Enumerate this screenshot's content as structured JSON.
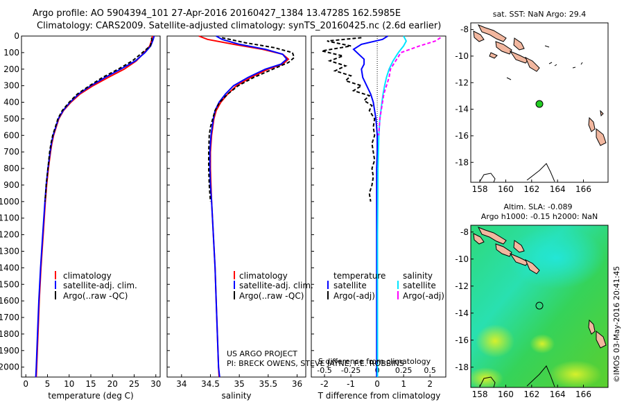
{
  "header": {
    "line1": "Argo profile: AO 5904394_101 27-Apr-2016 20160427_1384 13.4728S 162.5985E",
    "line2": "Climatology: CARS2009. Satellite-adjusted climatology: synTS_20160425.nc (2.6d earlier)"
  },
  "credits": {
    "project": "US ARGO PROJECT",
    "pi": "PI: BRECK OWENS, STEVE JAYNE, P.E. ROBBINS"
  },
  "side_stamp": "©IMOS 03-May-2016 20:41:45",
  "colors": {
    "climatology": "#ff0000",
    "satellite": "#0000ff",
    "argo": "#000000",
    "satellite_salinity": "#00e5ff",
    "argo_salinity": "#ff00ff",
    "land": "#f2b79f",
    "float_marker": "#22cc22"
  },
  "chart_data": [
    {
      "id": "temperature",
      "type": "line",
      "xlabel": "temperature (deg C)",
      "xlim": [
        -1,
        31
      ],
      "xticks": [
        0,
        5,
        10,
        15,
        20,
        25,
        30
      ],
      "ylim": [
        2060,
        0
      ],
      "yticks": [
        0,
        100,
        200,
        300,
        400,
        500,
        600,
        700,
        800,
        900,
        1000,
        1100,
        1200,
        1300,
        1400,
        1500,
        1600,
        1700,
        1800,
        1900,
        2000
      ],
      "series": [
        {
          "name": "climatology",
          "color": "#ff0000",
          "depth": [
            0,
            20,
            60,
            100,
            150,
            200,
            250,
            300,
            350,
            400,
            450,
            500,
            550,
            600,
            650,
            700,
            800,
            900,
            1000,
            1200,
            1400,
            1600,
            1800,
            2000,
            2060
          ],
          "values": [
            29.2,
            29.1,
            28.6,
            27.3,
            25.5,
            22.7,
            19.0,
            15.5,
            12.5,
            10.4,
            8.7,
            7.6,
            7.0,
            6.4,
            6.0,
            5.7,
            5.2,
            4.8,
            4.5,
            4.0,
            3.5,
            3.1,
            2.8,
            2.5,
            2.4
          ]
        },
        {
          "name": "satellite-adj. clim.",
          "color": "#0000ff",
          "depth": [
            0,
            20,
            60,
            100,
            150,
            200,
            250,
            300,
            350,
            400,
            450,
            500,
            550,
            600,
            650,
            700,
            800,
            900,
            1000,
            1200,
            1400,
            1600,
            1800,
            2000,
            2060
          ],
          "values": [
            29.6,
            29.4,
            28.8,
            27.5,
            25.3,
            21.9,
            18.3,
            15.0,
            12.2,
            10.2,
            8.6,
            7.5,
            6.9,
            6.3,
            5.9,
            5.6,
            5.1,
            4.7,
            4.4,
            3.9,
            3.4,
            3.0,
            2.7,
            2.4,
            2.3
          ]
        },
        {
          "name": "Argo(..raw -QC)",
          "color": "#000000",
          "depth": [
            10,
            30,
            60,
            100,
            150,
            200,
            250,
            300,
            350,
            400,
            450,
            500,
            550,
            600,
            650,
            700,
            750,
            800,
            850,
            900,
            950,
            1000
          ],
          "values": [
            29.0,
            29.1,
            28.7,
            26.9,
            24.6,
            21.3,
            17.7,
            14.7,
            11.9,
            10.0,
            8.4,
            7.4,
            6.8,
            6.2,
            5.8,
            5.5,
            5.3,
            5.1,
            4.9,
            4.7,
            4.6,
            4.4
          ]
        }
      ]
    },
    {
      "id": "salinity",
      "type": "line",
      "xlabel": "salinity",
      "xlim": [
        33.75,
        36.15
      ],
      "xticks": [
        34,
        34.5,
        35,
        35.5,
        36
      ],
      "ylim": [
        2060,
        0
      ],
      "series": [
        {
          "name": "climatology",
          "color": "#ff0000",
          "depth": [
            0,
            20,
            50,
            80,
            110,
            140,
            170,
            200,
            250,
            300,
            350,
            400,
            450,
            500,
            600,
            700,
            800,
            900,
            1000,
            1200,
            1400,
            1600,
            1800,
            2000,
            2060
          ],
          "values": [
            34.3,
            34.45,
            34.9,
            35.4,
            35.75,
            35.85,
            35.75,
            35.5,
            35.2,
            34.95,
            34.8,
            34.68,
            34.6,
            34.56,
            34.52,
            34.5,
            34.5,
            34.51,
            34.52,
            34.55,
            34.58,
            34.6,
            34.62,
            34.64,
            34.65
          ]
        },
        {
          "name": "satellite-adj. clim.",
          "color": "#0000ff",
          "depth": [
            0,
            20,
            50,
            80,
            110,
            140,
            170,
            200,
            250,
            300,
            350,
            400,
            450,
            500,
            600,
            700,
            800,
            900,
            1000,
            1200,
            1400,
            1600,
            1800,
            2000,
            2060
          ],
          "values": [
            34.6,
            34.7,
            35.0,
            35.45,
            35.75,
            35.82,
            35.72,
            35.45,
            35.15,
            34.9,
            34.76,
            34.65,
            34.58,
            34.55,
            34.51,
            34.49,
            34.49,
            34.5,
            34.52,
            34.55,
            34.58,
            34.6,
            34.62,
            34.64,
            34.66
          ]
        },
        {
          "name": "Argo(..raw -QC)",
          "color": "#000000",
          "depth": [
            10,
            40,
            70,
            100,
            130,
            160,
            200,
            250,
            300,
            350,
            400,
            450,
            500,
            550,
            600,
            700,
            800,
            900,
            1000
          ],
          "values": [
            34.7,
            35.1,
            35.6,
            35.92,
            35.95,
            35.85,
            35.58,
            35.25,
            34.98,
            34.8,
            34.66,
            34.58,
            34.54,
            34.5,
            34.48,
            34.47,
            34.47,
            34.48,
            34.5
          ]
        }
      ]
    },
    {
      "id": "difference",
      "type": "line",
      "xlabel": "T difference from climatology",
      "top_xlabel": "S difference from climatology",
      "xlim": [
        -2.5,
        2.6
      ],
      "xticks": [
        -2,
        -1,
        0,
        1,
        2
      ],
      "top_xlim": [
        -0.625,
        0.65
      ],
      "top_xticks": [
        -0.5,
        -0.25,
        0,
        0.25,
        0.5
      ],
      "ylim": [
        2060,
        0
      ],
      "legend_left_title": "temperature",
      "legend_right_title": "salinity",
      "series": [
        {
          "name": "satellite",
          "color": "#0000ff",
          "depth": [
            0,
            20,
            50,
            80,
            110,
            140,
            170,
            200,
            250,
            300,
            350,
            400,
            450,
            500,
            600,
            700,
            800,
            900,
            1000,
            1200,
            1400,
            1600,
            1800,
            2000,
            2060
          ],
          "values": [
            0.4,
            0.2,
            -0.6,
            -0.9,
            -0.7,
            -0.5,
            -0.5,
            -0.6,
            -0.55,
            -0.4,
            -0.25,
            -0.15,
            -0.1,
            -0.05,
            0,
            0,
            -0.02,
            -0.02,
            -0.02,
            -0.02,
            -0.02,
            -0.02,
            -0.02,
            -0.02,
            -0.02
          ]
        },
        {
          "name": "Argo(-adj)",
          "color": "#000000",
          "depth": [
            10,
            30,
            60,
            90,
            120,
            150,
            180,
            210,
            240,
            270,
            300,
            330,
            360,
            390,
            420,
            450,
            500,
            550,
            600,
            650,
            700,
            750,
            800,
            850,
            900,
            950,
            1000
          ],
          "values": [
            -0.6,
            -1.9,
            -1.0,
            -2.1,
            -1.3,
            -1.8,
            -1.2,
            -1.6,
            -1.0,
            -1.2,
            -0.6,
            -0.9,
            -0.3,
            -0.5,
            -0.2,
            -0.3,
            -0.1,
            -0.15,
            -0.1,
            -0.2,
            -0.15,
            -0.1,
            -0.2,
            -0.15,
            -0.2,
            -0.3,
            -0.25
          ]
        },
        {
          "name": "satellite",
          "color": "#00e5ff",
          "depth": [
            0,
            30,
            60,
            100,
            150,
            200,
            250,
            300,
            350,
            400,
            500,
            600,
            800,
            1000,
            1200,
            1400,
            1600,
            1800,
            2000,
            2060
          ],
          "values": [
            1.0,
            1.1,
            1.0,
            0.8,
            0.6,
            0.45,
            0.35,
            0.28,
            0.22,
            0.18,
            0.1,
            0.06,
            0.03,
            0.02,
            0.01,
            0.01,
            0.01,
            0.01,
            0.01,
            0.01
          ]
        },
        {
          "name": "Argo(-adj)",
          "color": "#ff00ff",
          "depth": [
            10,
            30,
            60,
            100,
            150,
            200,
            250,
            300,
            350,
            400,
            450,
            500,
            550,
            600
          ],
          "values": [
            2.4,
            2.2,
            1.6,
            0.9,
            0.7,
            0.5,
            0.45,
            0.35,
            0.25,
            0.2,
            0.15,
            0.1,
            0.08,
            0.05
          ]
        }
      ]
    }
  ],
  "maps": [
    {
      "id": "sst-map",
      "title": "sat. SST: NaN Argo: 29.4",
      "title2": "",
      "xticks": [
        158,
        160,
        162,
        164,
        166
      ],
      "yticks": [
        -8,
        -10,
        -12,
        -14,
        -16,
        -18
      ],
      "float_lon": 162.5985,
      "float_lat": -13.4728
    },
    {
      "id": "sla-map",
      "title": "Altim. SLA: -0.089",
      "title2": "Argo h1000: -0.15 h2000: NaN",
      "xticks": [
        158,
        160,
        162,
        164,
        166
      ],
      "yticks": [
        -8,
        -10,
        -12,
        -14,
        -16,
        -18
      ],
      "float_lon": 162.5985,
      "float_lat": -13.4728
    }
  ]
}
